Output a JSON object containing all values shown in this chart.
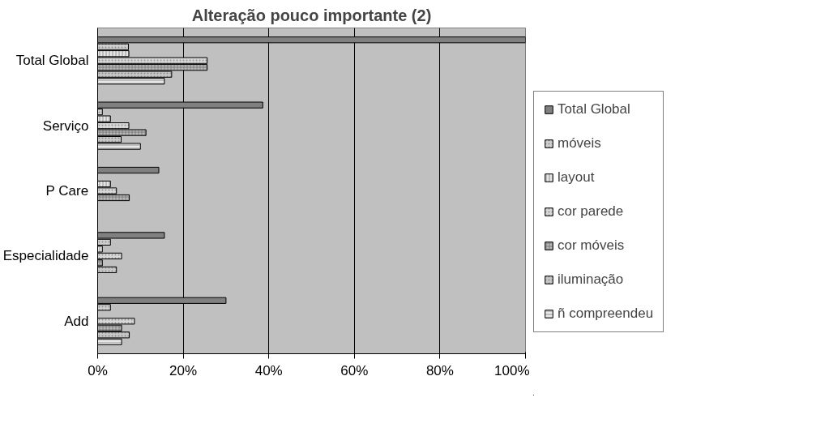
{
  "chart_data": {
    "type": "bar",
    "orientation": "horizontal",
    "title": "Alteração pouco importante (2)",
    "categories": [
      "Total Global",
      "Serviço",
      "P Care",
      "Especialidade",
      "Add"
    ],
    "series": [
      {
        "name": "Total Global",
        "color": "#808080",
        "values": [
          100,
          38.6,
          14.3,
          15.6,
          30
        ]
      },
      {
        "name": "móveis",
        "color": "#d0d0d0",
        "values": [
          7.2,
          1.1,
          null,
          3.0,
          3.0
        ]
      },
      {
        "name": "layout",
        "color": "#e4e4e4",
        "values": [
          7.3,
          3.0,
          3.0,
          1.1,
          null
        ]
      },
      {
        "name": "cor parede",
        "color": "#d8d8d8",
        "values": [
          25.6,
          7.3,
          4.4,
          5.6,
          8.6
        ]
      },
      {
        "name": "cor móveis",
        "color": "#b8b8b8",
        "values": [
          25.6,
          11.3,
          7.4,
          1.1,
          5.6
        ]
      },
      {
        "name": "iluminação",
        "color": "#c8c8c8",
        "values": [
          17.3,
          5.5,
          null,
          4.4,
          7.4
        ]
      },
      {
        "name": "ñ compreendeu",
        "color": "#e8e8e8",
        "values": [
          15.6,
          10.0,
          null,
          null,
          5.6
        ]
      }
    ],
    "xlim": [
      0,
      100
    ],
    "xticks": [
      {
        "value": 0,
        "label": "0%"
      },
      {
        "value": 20,
        "label": "20%"
      },
      {
        "value": 40,
        "label": "40%"
      },
      {
        "value": 60,
        "label": "60%"
      },
      {
        "value": 80,
        "label": "80%"
      },
      {
        "value": 100,
        "label": "100%"
      }
    ],
    "grid": "x",
    "legend": "right"
  }
}
